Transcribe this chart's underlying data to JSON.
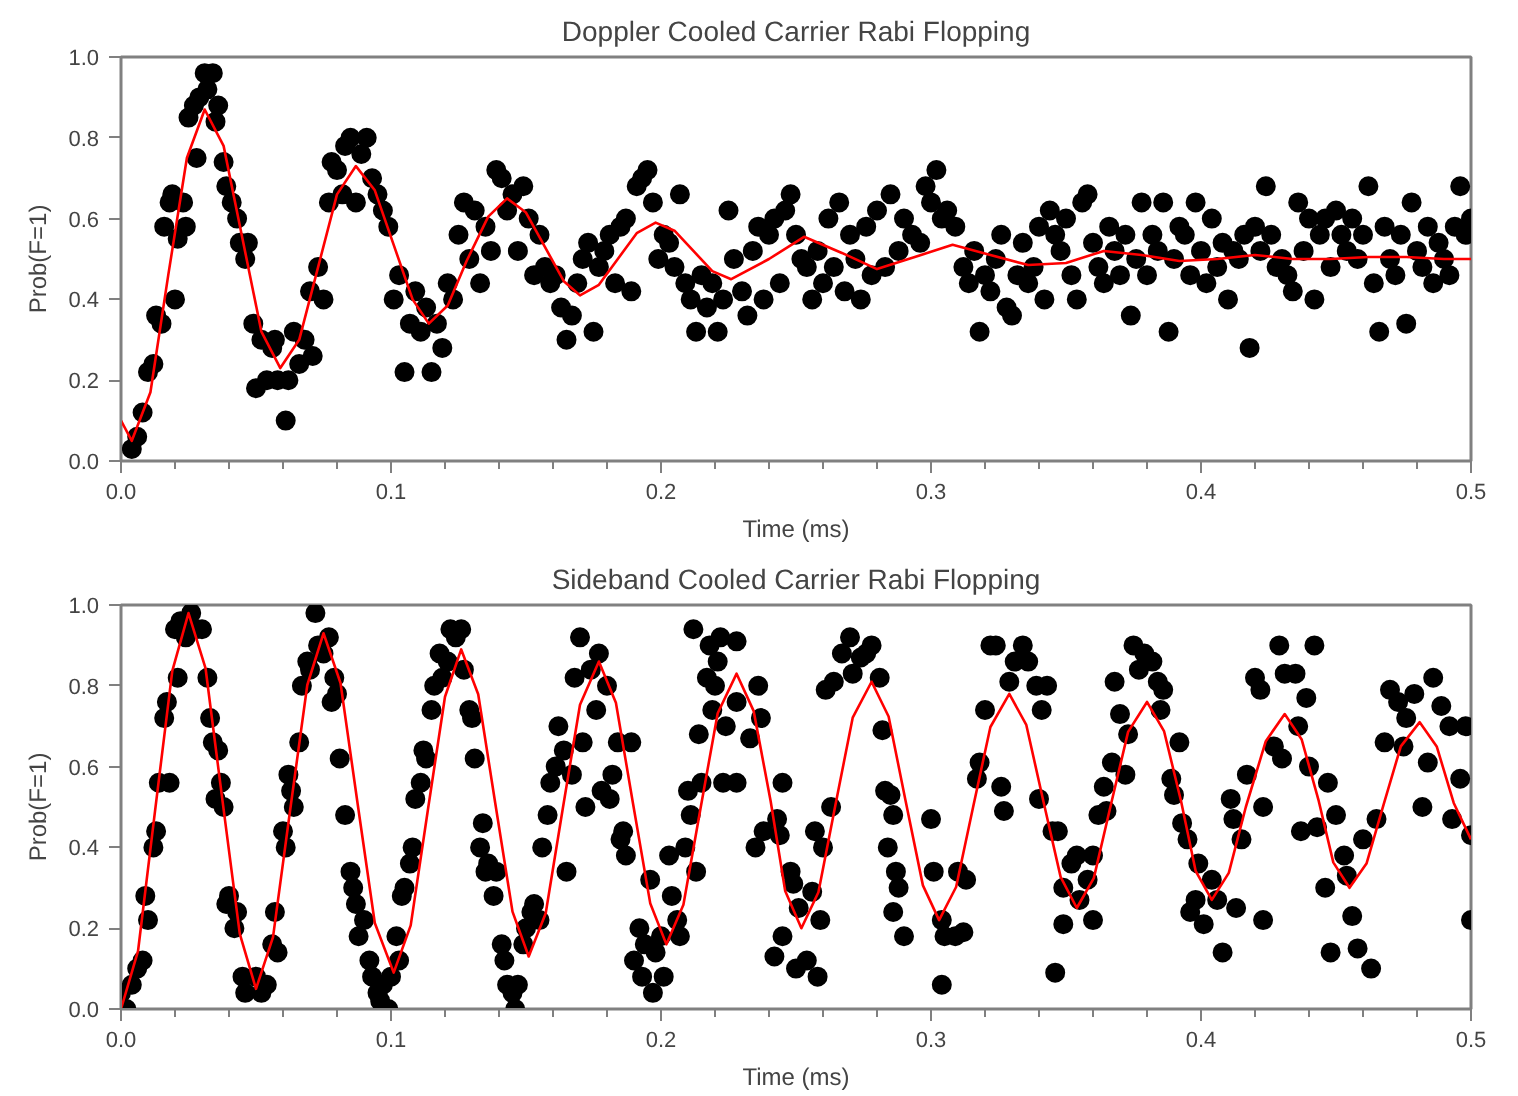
{
  "chart_data": [
    {
      "type": "scatter",
      "title": "Doppler Cooled Carrier Rabi Flopping",
      "xlabel": "Time (ms)",
      "ylabel": "Prob(F=1)",
      "xlim": [
        0,
        0.5
      ],
      "ylim": [
        0,
        1
      ],
      "xticks": [
        {
          "value": 0,
          "label": "0.0"
        },
        {
          "value": 0.02,
          "label": null
        },
        {
          "value": 0.04,
          "label": null
        },
        {
          "value": 0.06,
          "label": null
        },
        {
          "value": 0.08,
          "label": null
        },
        {
          "value": 0.1,
          "label": "0.1"
        },
        {
          "value": 0.12,
          "label": null
        },
        {
          "value": 0.14,
          "label": null
        },
        {
          "value": 0.16,
          "label": null
        },
        {
          "value": 0.18,
          "label": null
        },
        {
          "value": 0.2,
          "label": "0.2"
        },
        {
          "value": 0.22,
          "label": null
        },
        {
          "value": 0.24,
          "label": null
        },
        {
          "value": 0.26,
          "label": null
        },
        {
          "value": 0.28,
          "label": null
        },
        {
          "value": 0.3,
          "label": "0.3"
        },
        {
          "value": 0.32,
          "label": null
        },
        {
          "value": 0.34,
          "label": null
        },
        {
          "value": 0.36,
          "label": null
        },
        {
          "value": 0.38,
          "label": null
        },
        {
          "value": 0.4,
          "label": "0.4"
        },
        {
          "value": 0.42,
          "label": null
        },
        {
          "value": 0.44,
          "label": null
        },
        {
          "value": 0.46,
          "label": null
        },
        {
          "value": 0.48,
          "label": null
        },
        {
          "value": 0.5,
          "label": "0.5"
        }
      ],
      "yticks": [
        {
          "value": 0,
          "label": "0.0"
        },
        {
          "value": 0.2,
          "label": "0.2"
        },
        {
          "value": 0.4,
          "label": "0.4"
        },
        {
          "value": 0.6,
          "label": "0.6"
        },
        {
          "value": 0.8,
          "label": "0.8"
        },
        {
          "value": 1,
          "label": "1.0"
        }
      ],
      "series": [
        {
          "type": "scatter",
          "marker": "circle",
          "color": "#000000",
          "x": [
            0.004,
            0.006,
            0.008,
            0.01,
            0.012,
            0.013,
            0.015,
            0.016,
            0.018,
            0.019,
            0.02,
            0.021,
            0.023,
            0.024,
            0.025,
            0.027,
            0.028,
            0.029,
            0.031,
            0.032,
            0.034,
            0.035,
            0.036,
            0.038,
            0.039,
            0.041,
            0.043,
            0.044,
            0.046,
            0.047,
            0.049,
            0.05,
            0.052,
            0.054,
            0.056,
            0.057,
            0.058,
            0.061,
            0.062,
            0.064,
            0.066,
            0.068,
            0.07,
            0.071,
            0.073,
            0.075,
            0.077,
            0.078,
            0.08,
            0.082,
            0.083,
            0.085,
            0.087,
            0.089,
            0.091,
            0.093,
            0.095,
            0.097,
            0.099,
            0.101,
            0.103,
            0.105,
            0.107,
            0.109,
            0.111,
            0.113,
            0.115,
            0.117,
            0.119,
            0.121,
            0.123,
            0.125,
            0.127,
            0.129,
            0.131,
            0.133,
            0.135,
            0.137,
            0.139,
            0.141,
            0.143,
            0.145,
            0.147,
            0.149,
            0.151,
            0.153,
            0.155,
            0.157,
            0.159,
            0.161,
            0.163,
            0.165,
            0.167,
            0.169,
            0.171,
            0.173,
            0.175,
            0.177,
            0.179,
            0.181,
            0.183,
            0.185,
            0.187,
            0.189,
            0.191,
            0.193,
            0.195,
            0.197,
            0.199,
            0.201,
            0.203,
            0.205,
            0.207,
            0.209,
            0.211,
            0.213,
            0.215,
            0.217,
            0.219,
            0.221,
            0.223,
            0.225,
            0.227,
            0.23,
            0.232,
            0.234,
            0.236,
            0.238,
            0.24,
            0.242,
            0.244,
            0.246,
            0.248,
            0.25,
            0.252,
            0.254,
            0.256,
            0.258,
            0.26,
            0.262,
            0.264,
            0.266,
            0.268,
            0.27,
            0.272,
            0.274,
            0.276,
            0.278,
            0.28,
            0.283,
            0.285,
            0.288,
            0.29,
            0.293,
            0.296,
            0.298,
            0.3,
            0.302,
            0.304,
            0.306,
            0.309,
            0.312,
            0.314,
            0.316,
            0.318,
            0.32,
            0.322,
            0.324,
            0.326,
            0.328,
            0.33,
            0.332,
            0.334,
            0.336,
            0.338,
            0.34,
            0.342,
            0.344,
            0.346,
            0.348,
            0.35,
            0.352,
            0.354,
            0.356,
            0.358,
            0.36,
            0.362,
            0.364,
            0.366,
            0.368,
            0.37,
            0.372,
            0.374,
            0.376,
            0.378,
            0.38,
            0.382,
            0.384,
            0.386,
            0.388,
            0.39,
            0.392,
            0.394,
            0.396,
            0.398,
            0.4,
            0.402,
            0.404,
            0.406,
            0.408,
            0.41,
            0.412,
            0.414,
            0.416,
            0.418,
            0.42,
            0.422,
            0.424,
            0.426,
            0.428,
            0.43,
            0.432,
            0.434,
            0.436,
            0.438,
            0.44,
            0.442,
            0.444,
            0.446,
            0.448,
            0.45,
            0.452,
            0.454,
            0.456,
            0.458,
            0.46,
            0.462,
            0.464,
            0.466,
            0.468,
            0.47,
            0.472,
            0.474,
            0.476,
            0.478,
            0.48,
            0.482,
            0.484,
            0.486,
            0.488,
            0.49,
            0.492,
            0.494,
            0.496,
            0.498,
            0.5
          ],
          "values": [
            0.03,
            0.06,
            0.12,
            0.22,
            0.24,
            0.36,
            0.34,
            0.58,
            0.64,
            0.66,
            0.4,
            0.55,
            0.64,
            0.58,
            0.85,
            0.88,
            0.75,
            0.9,
            0.96,
            0.92,
            0.96,
            0.84,
            0.88,
            0.74,
            0.68,
            0.64,
            0.6,
            0.54,
            0.5,
            0.54,
            0.34,
            0.18,
            0.3,
            0.2,
            0.28,
            0.3,
            0.2,
            0.1,
            0.2,
            0.32,
            0.24,
            0.3,
            0.42,
            0.26,
            0.48,
            0.4,
            0.64,
            0.74,
            0.72,
            0.66,
            0.78,
            0.8,
            0.64,
            0.76,
            0.8,
            0.7,
            0.66,
            0.62,
            0.58,
            0.4,
            0.46,
            0.22,
            0.34,
            0.42,
            0.32,
            0.38,
            0.22,
            0.34,
            0.28,
            0.44,
            0.4,
            0.56,
            0.64,
            0.5,
            0.62,
            0.44,
            0.58,
            0.52,
            0.72,
            0.7,
            0.62,
            0.66,
            0.52,
            0.68,
            0.6,
            0.46,
            0.56,
            0.48,
            0.44,
            0.46,
            0.38,
            0.3,
            0.36,
            0.44,
            0.5,
            0.54,
            0.32,
            0.48,
            0.52,
            0.56,
            0.44,
            0.58,
            0.6,
            0.42,
            0.68,
            0.7,
            0.72,
            0.64,
            0.5,
            0.56,
            0.54,
            0.48,
            0.66,
            0.44,
            0.4,
            0.32,
            0.46,
            0.38,
            0.44,
            0.32,
            0.4,
            0.62,
            0.5,
            0.42,
            0.36,
            0.52,
            0.58,
            0.4,
            0.56,
            0.6,
            0.44,
            0.62,
            0.66,
            0.56,
            0.5,
            0.48,
            0.4,
            0.52,
            0.44,
            0.6,
            0.48,
            0.64,
            0.42,
            0.56,
            0.5,
            0.4,
            0.58,
            0.46,
            0.62,
            0.48,
            0.66,
            0.52,
            0.6,
            0.56,
            0.54,
            0.68,
            0.64,
            0.72,
            0.6,
            0.62,
            0.58,
            0.48,
            0.44,
            0.52,
            0.32,
            0.46,
            0.42,
            0.5,
            0.56,
            0.38,
            0.36,
            0.46,
            0.54,
            0.44,
            0.48,
            0.58,
            0.4,
            0.62,
            0.56,
            0.52,
            0.6,
            0.46,
            0.4,
            0.64,
            0.66,
            0.54,
            0.48,
            0.44,
            0.58,
            0.52,
            0.46,
            0.56,
            0.36,
            0.5,
            0.64,
            0.46,
            0.56,
            0.52,
            0.64,
            0.32,
            0.5,
            0.58,
            0.56,
            0.46,
            0.64,
            0.52,
            0.44,
            0.6,
            0.48,
            0.54,
            0.4,
            0.52,
            0.5,
            0.56,
            0.28,
            0.58,
            0.52,
            0.68,
            0.56,
            0.48,
            0.5,
            0.46,
            0.42,
            0.64,
            0.52,
            0.6,
            0.4,
            0.56,
            0.6,
            0.48,
            0.62,
            0.56,
            0.52,
            0.6,
            0.5,
            0.56,
            0.68,
            0.44,
            0.32,
            0.58,
            0.5,
            0.46,
            0.56,
            0.34,
            0.64,
            0.52,
            0.48,
            0.58,
            0.44,
            0.54,
            0.5,
            0.46,
            0.58,
            0.68,
            0.56,
            0.6
          ]
        },
        {
          "type": "line",
          "color": "#ff0000",
          "x": [
            0,
            0.004,
            0.0109,
            0.0175,
            0.0244,
            0.031,
            0.038,
            0.045,
            0.052,
            0.059,
            0.066,
            0.073,
            0.08,
            0.087,
            0.094,
            0.101,
            0.108,
            0.114,
            0.121,
            0.128,
            0.136,
            0.143,
            0.15,
            0.157,
            0.164,
            0.17,
            0.177,
            0.184,
            0.191,
            0.198,
            0.205,
            0.212,
            0.219,
            0.226,
            0.24,
            0.253,
            0.267,
            0.28,
            0.294,
            0.308,
            0.322,
            0.336,
            0.35,
            0.364,
            0.378,
            0.392,
            0.406,
            0.42,
            0.434,
            0.448,
            0.462,
            0.476,
            0.49,
            0.5
          ],
          "values": [
            0.1,
            0.05,
            0.17,
            0.46,
            0.75,
            0.87,
            0.78,
            0.55,
            0.32,
            0.23,
            0.3,
            0.48,
            0.66,
            0.73,
            0.67,
            0.535,
            0.4,
            0.34,
            0.385,
            0.495,
            0.605,
            0.65,
            0.615,
            0.53,
            0.445,
            0.41,
            0.436,
            0.5,
            0.564,
            0.59,
            0.57,
            0.52,
            0.47,
            0.45,
            0.5,
            0.555,
            0.515,
            0.475,
            0.505,
            0.535,
            0.51,
            0.485,
            0.49,
            0.52,
            0.51,
            0.495,
            0.5,
            0.51,
            0.5,
            0.5,
            0.505,
            0.505,
            0.5,
            0.5
          ]
        }
      ]
    },
    {
      "type": "scatter",
      "title": "Sideband Cooled Carrier Rabi Flopping",
      "xlabel": "Time (ms)",
      "ylabel": "Prob(F=1)",
      "xlim": [
        0,
        0.5
      ],
      "ylim": [
        0,
        1
      ],
      "xticks": [
        {
          "value": 0,
          "label": "0.0"
        },
        {
          "value": 0.02,
          "label": null
        },
        {
          "value": 0.04,
          "label": null
        },
        {
          "value": 0.06,
          "label": null
        },
        {
          "value": 0.08,
          "label": null
        },
        {
          "value": 0.1,
          "label": "0.1"
        },
        {
          "value": 0.12,
          "label": null
        },
        {
          "value": 0.14,
          "label": null
        },
        {
          "value": 0.16,
          "label": null
        },
        {
          "value": 0.18,
          "label": null
        },
        {
          "value": 0.2,
          "label": "0.2"
        },
        {
          "value": 0.22,
          "label": null
        },
        {
          "value": 0.24,
          "label": null
        },
        {
          "value": 0.26,
          "label": null
        },
        {
          "value": 0.28,
          "label": null
        },
        {
          "value": 0.3,
          "label": "0.3"
        },
        {
          "value": 0.32,
          "label": null
        },
        {
          "value": 0.34,
          "label": null
        },
        {
          "value": 0.36,
          "label": null
        },
        {
          "value": 0.38,
          "label": null
        },
        {
          "value": 0.4,
          "label": "0.4"
        },
        {
          "value": 0.42,
          "label": null
        },
        {
          "value": 0.44,
          "label": null
        },
        {
          "value": 0.46,
          "label": null
        },
        {
          "value": 0.48,
          "label": null
        },
        {
          "value": 0.5,
          "label": "0.5"
        }
      ],
      "yticks": [
        {
          "value": 0,
          "label": "0.0"
        },
        {
          "value": 0.2,
          "label": "0.2"
        },
        {
          "value": 0.4,
          "label": "0.4"
        },
        {
          "value": 0.6,
          "label": "0.6"
        },
        {
          "value": 0.8,
          "label": "0.8"
        },
        {
          "value": 1,
          "label": "1.0"
        }
      ],
      "series": [
        {
          "type": "scatter",
          "marker": "circle",
          "color": "#000000",
          "x": [
            0.0,
            0.002,
            0.004,
            0.006,
            0.008,
            0.009,
            0.01,
            0.012,
            0.013,
            0.014,
            0.016,
            0.017,
            0.018,
            0.02,
            0.021,
            0.022,
            0.024,
            0.026,
            0.028,
            0.03,
            0.032,
            0.033,
            0.034,
            0.035,
            0.036,
            0.037,
            0.038,
            0.039,
            0.04,
            0.042,
            0.043,
            0.045,
            0.046,
            0.05,
            0.052,
            0.054,
            0.056,
            0.057,
            0.058,
            0.06,
            0.061,
            0.062,
            0.063,
            0.064,
            0.066,
            0.067,
            0.069,
            0.07,
            0.072,
            0.073,
            0.075,
            0.077,
            0.078,
            0.079,
            0.08,
            0.081,
            0.083,
            0.085,
            0.086,
            0.087,
            0.088,
            0.09,
            0.092,
            0.093,
            0.095,
            0.096,
            0.097,
            0.099,
            0.1,
            0.102,
            0.103,
            0.104,
            0.105,
            0.107,
            0.108,
            0.109,
            0.111,
            0.112,
            0.113,
            0.115,
            0.116,
            0.118,
            0.119,
            0.121,
            0.122,
            0.124,
            0.126,
            0.127,
            0.129,
            0.13,
            0.131,
            0.133,
            0.134,
            0.135,
            0.136,
            0.138,
            0.139,
            0.141,
            0.142,
            0.143,
            0.145,
            0.146,
            0.147,
            0.149,
            0.15,
            0.152,
            0.153,
            0.155,
            0.156,
            0.158,
            0.159,
            0.161,
            0.162,
            0.164,
            0.165,
            0.167,
            0.168,
            0.17,
            0.171,
            0.172,
            0.174,
            0.176,
            0.177,
            0.178,
            0.18,
            0.181,
            0.182,
            0.184,
            0.185,
            0.186,
            0.187,
            0.189,
            0.19,
            0.192,
            0.193,
            0.194,
            0.196,
            0.197,
            0.198,
            0.2,
            0.201,
            0.203,
            0.204,
            0.206,
            0.207,
            0.209,
            0.21,
            0.211,
            0.212,
            0.213,
            0.214,
            0.215,
            0.217,
            0.218,
            0.219,
            0.22,
            0.221,
            0.222,
            0.223,
            0.224,
            0.228,
            0.228,
            0.228,
            0.236,
            0.237,
            0.233,
            0.238,
            0.235,
            0.243,
            0.245,
            0.244,
            0.248,
            0.249,
            0.251,
            0.242,
            0.245,
            0.25,
            0.254,
            0.258,
            0.256,
            0.259,
            0.257,
            0.26,
            0.263,
            0.261,
            0.264,
            0.267,
            0.27,
            0.271,
            0.274,
            0.276,
            0.278,
            0.281,
            0.282,
            0.283,
            0.285,
            0.284,
            0.286,
            0.287,
            0.288,
            0.286,
            0.29,
            0.301,
            0.3,
            0.304,
            0.305,
            0.304,
            0.309,
            0.31,
            0.313,
            0.312,
            0.317,
            0.318,
            0.32,
            0.322,
            0.324,
            0.326,
            0.327,
            0.329,
            0.331,
            0.334,
            0.336,
            0.339,
            0.341,
            0.34,
            0.343,
            0.345,
            0.347,
            0.346,
            0.349,
            0.349,
            0.352,
            0.354,
            0.355,
            0.358,
            0.36,
            0.36,
            0.362,
            0.364,
            0.365,
            0.367,
            0.368,
            0.37,
            0.372,
            0.373,
            0.375,
            0.377,
            0.379,
            0.382,
            0.384,
            0.385,
            0.386,
            0.389,
            0.392,
            0.39,
            0.393,
            0.395,
            0.398,
            0.399,
            0.396,
            0.401,
            0.404,
            0.406,
            0.408,
            0.411,
            0.412,
            0.415,
            0.413,
            0.417,
            0.42,
            0.422,
            0.423,
            0.423,
            0.427,
            0.429,
            0.43,
            0.431,
            0.435,
            0.436,
            0.439,
            0.437,
            0.44,
            0.442,
            0.443,
            0.447,
            0.446,
            0.448,
            0.45,
            0.453,
            0.454,
            0.456,
            0.458,
            0.46,
            0.463,
            0.465,
            0.468,
            0.47,
            0.473,
            0.475,
            0.476,
            0.479,
            0.482,
            0.484,
            0.486,
            0.489,
            0.492,
            0.493,
            0.496,
            0.498,
            0.5,
            0.5
          ],
          "values": [
            0.04,
            0.0,
            0.06,
            0.1,
            0.12,
            0.28,
            0.22,
            0.4,
            0.44,
            0.56,
            0.72,
            0.76,
            0.56,
            0.94,
            0.82,
            0.96,
            0.92,
            0.98,
            0.94,
            0.94,
            0.82,
            0.72,
            0.66,
            0.52,
            0.64,
            0.56,
            0.5,
            0.26,
            0.28,
            0.2,
            0.24,
            0.08,
            0.04,
            0.08,
            0.04,
            0.06,
            0.16,
            0.24,
            0.14,
            0.44,
            0.4,
            0.58,
            0.54,
            0.5,
            0.66,
            0.8,
            0.86,
            0.84,
            0.98,
            0.9,
            0.88,
            0.92,
            0.76,
            0.82,
            0.78,
            0.62,
            0.48,
            0.34,
            0.3,
            0.26,
            0.18,
            0.22,
            0.12,
            0.08,
            0.04,
            0.02,
            0.06,
            0.0,
            0.08,
            0.18,
            0.12,
            0.28,
            0.3,
            0.36,
            0.4,
            0.52,
            0.56,
            0.64,
            0.62,
            0.74,
            0.8,
            0.88,
            0.82,
            0.86,
            0.94,
            0.92,
            0.94,
            0.84,
            0.74,
            0.72,
            0.62,
            0.4,
            0.46,
            0.34,
            0.36,
            0.28,
            0.34,
            0.16,
            0.12,
            0.06,
            0.04,
            0.0,
            0.06,
            0.16,
            0.2,
            0.24,
            0.26,
            0.22,
            0.4,
            0.48,
            0.56,
            0.6,
            0.7,
            0.64,
            0.34,
            0.58,
            0.82,
            0.92,
            0.66,
            0.5,
            0.84,
            0.74,
            0.88,
            0.54,
            0.8,
            0.52,
            0.58,
            0.66,
            0.42,
            0.44,
            0.38,
            0.66,
            0.12,
            0.2,
            0.08,
            0.16,
            0.32,
            0.04,
            0.14,
            0.18,
            0.08,
            0.38,
            0.28,
            0.22,
            0.18,
            0.4,
            0.54,
            0.48,
            0.94,
            0.34,
            0.68,
            0.56,
            0.82,
            0.9,
            0.74,
            0.8,
            0.86,
            0.92,
            0.56,
            0.7,
            0.91,
            0.76,
            0.56,
            0.8,
            0.72,
            0.67,
            0.44,
            0.4,
            0.47,
            0.56,
            0.43,
            0.34,
            0.31,
            0.25,
            0.13,
            0.18,
            0.1,
            0.12,
            0.08,
            0.29,
            0.22,
            0.44,
            0.4,
            0.5,
            0.79,
            0.81,
            0.88,
            0.92,
            0.83,
            0.87,
            0.88,
            0.9,
            0.82,
            0.69,
            0.54,
            0.53,
            0.4,
            0.48,
            0.34,
            0.3,
            0.24,
            0.18,
            0.34,
            0.47,
            0.22,
            0.18,
            0.06,
            0.18,
            0.34,
            0.32,
            0.19,
            0.57,
            0.61,
            0.74,
            0.9,
            0.9,
            0.55,
            0.49,
            0.81,
            0.86,
            0.9,
            0.86,
            0.8,
            0.74,
            0.52,
            0.8,
            0.44,
            0.44,
            0.09,
            0.3,
            0.21,
            0.36,
            0.38,
            0.27,
            0.32,
            0.22,
            0.38,
            0.48,
            0.55,
            0.49,
            0.61,
            0.81,
            0.73,
            0.58,
            0.68,
            0.9,
            0.84,
            0.88,
            0.86,
            0.81,
            0.74,
            0.79,
            0.57,
            0.66,
            0.53,
            0.46,
            0.42,
            0.27,
            0.36,
            0.24,
            0.21,
            0.32,
            0.27,
            0.14,
            0.52,
            0.47,
            0.42,
            0.25,
            0.58,
            0.82,
            0.79,
            0.22,
            0.5,
            0.65,
            0.9,
            0.62,
            0.83,
            0.83,
            0.7,
            0.77,
            0.44,
            0.6,
            0.9,
            0.45,
            0.56,
            0.3,
            0.14,
            0.48,
            0.38,
            0.33,
            0.23,
            0.15,
            0.42,
            0.1,
            0.47,
            0.66,
            0.79,
            0.76,
            0.65,
            0.72,
            0.78,
            0.5,
            0.61,
            0.82,
            0.75,
            0.7,
            0.47,
            0.57,
            0.7,
            0.22,
            0.43
          ]
        },
        {
          "type": "line",
          "color": "#ff0000",
          "x": [
            0,
            0.0063,
            0.0126,
            0.019,
            0.025,
            0.0313,
            0.0376,
            0.044,
            0.05,
            0.0563,
            0.0626,
            0.069,
            0.075,
            0.0813,
            0.0876,
            0.094,
            0.101,
            0.1073,
            0.1136,
            0.12,
            0.126,
            0.1323,
            0.1386,
            0.145,
            0.151,
            0.1573,
            0.1636,
            0.17,
            0.177,
            0.1833,
            0.1896,
            0.196,
            0.202,
            0.2083,
            0.2146,
            0.221,
            0.228,
            0.2343,
            0.2406,
            0.246,
            0.252,
            0.2583,
            0.2646,
            0.271,
            0.278,
            0.2843,
            0.2906,
            0.297,
            0.303,
            0.3093,
            0.3156,
            0.322,
            0.329,
            0.3353,
            0.3416,
            0.348,
            0.354,
            0.3603,
            0.3666,
            0.373,
            0.38,
            0.3863,
            0.3926,
            0.398,
            0.404,
            0.4103,
            0.4166,
            0.424,
            0.431,
            0.4373,
            0.4436,
            0.449,
            0.455,
            0.4613,
            0.4676,
            0.474,
            0.481,
            0.4873,
            0.4936,
            0.5
          ],
          "values": [
            0,
            0.143,
            0.49,
            0.837,
            0.98,
            0.844,
            0.515,
            0.186,
            0.05,
            0.178,
            0.49,
            0.802,
            0.93,
            0.807,
            0.51,
            0.213,
            0.09,
            0.207,
            0.49,
            0.773,
            0.89,
            0.779,
            0.51,
            0.241,
            0.13,
            0.237,
            0.495,
            0.753,
            0.86,
            0.758,
            0.51,
            0.262,
            0.16,
            0.258,
            0.495,
            0.732,
            0.83,
            0.738,
            0.515,
            0.292,
            0.2,
            0.289,
            0.505,
            0.721,
            0.81,
            0.724,
            0.515,
            0.306,
            0.22,
            0.302,
            0.5,
            0.698,
            0.78,
            0.703,
            0.515,
            0.327,
            0.25,
            0.324,
            0.505,
            0.686,
            0.76,
            0.688,
            0.515,
            0.342,
            0.27,
            0.337,
            0.5,
            0.663,
            0.73,
            0.667,
            0.515,
            0.363,
            0.3,
            0.36,
            0.505,
            0.65,
            0.71,
            0.65,
            0.51,
            0.42
          ]
        }
      ]
    }
  ]
}
